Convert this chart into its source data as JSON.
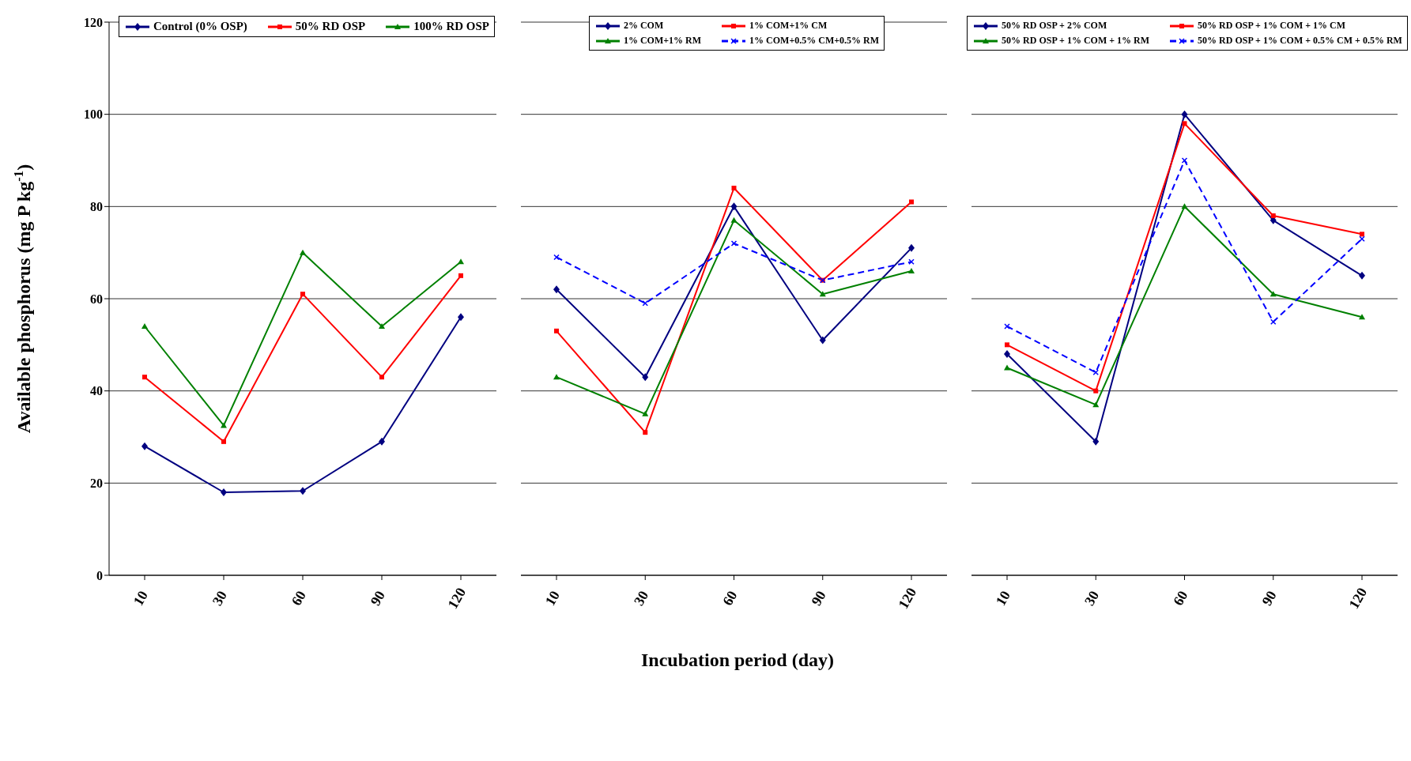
{
  "chart_data": [
    {
      "type": "line",
      "ylabel": "Available phosphorus (mg P kg$^{-1}$)",
      "categories": [
        "10",
        "30",
        "60",
        "90",
        "120"
      ],
      "ylim": [
        0,
        120
      ],
      "yticks": [
        0,
        20,
        40,
        60,
        80,
        100,
        120
      ],
      "grid": "y",
      "legend": "top right",
      "series": [
        {
          "name": "Control (0% OSP)",
          "color": "#000080",
          "marker": "diamond",
          "values": [
            28,
            18,
            18.3,
            29,
            56
          ]
        },
        {
          "name": "50% RD OSP",
          "color": "#ff0000",
          "marker": "square",
          "values": [
            43,
            29,
            61,
            43,
            65
          ]
        },
        {
          "name": "100% RD OSP",
          "color": "#008000",
          "marker": "triangle",
          "values": [
            54,
            32.5,
            70,
            54,
            68
          ]
        }
      ]
    },
    {
      "type": "line",
      "xlabel": "Incubation period (day)",
      "categories": [
        "10",
        "30",
        "60",
        "90",
        "120"
      ],
      "ylim": [
        0,
        120
      ],
      "yticks": [
        0,
        20,
        40,
        60,
        80,
        100,
        120
      ],
      "grid": "y",
      "legend": "top",
      "tick_labels": "x",
      "series": [
        {
          "name": "2% COM",
          "color": "#000080",
          "marker": "diamond",
          "values": [
            62,
            43,
            80,
            51,
            71
          ]
        },
        {
          "name": "1% COM+1% CM",
          "color": "#ff0000",
          "marker": "square",
          "values": [
            53,
            31,
            84,
            64,
            81
          ]
        },
        {
          "name": "1% COM+1% RM",
          "color": "#008000",
          "marker": "triangle",
          "values": [
            43,
            35,
            77,
            61,
            66
          ]
        },
        {
          "name": "1% COM+0.5% CM+0.5% RM",
          "color": "#0000ff",
          "marker": "cross",
          "line_style": "dashed",
          "values": [
            69,
            59,
            72,
            64,
            68
          ]
        }
      ]
    },
    {
      "type": "line",
      "categories": [
        "10",
        "30",
        "60",
        "90",
        "120"
      ],
      "ylim": [
        0,
        120
      ],
      "yticks": [
        0,
        20,
        40,
        60,
        80,
        100,
        120
      ],
      "grid": "y",
      "legend": "top",
      "tick_labels": "x",
      "series": [
        {
          "name": "50% RD OSP + 2% COM",
          "color": "#000080",
          "marker": "diamond",
          "values": [
            48,
            29,
            100,
            77,
            65
          ]
        },
        {
          "name": "50% RD OSP + 1% COM + 1% CM",
          "color": "#ff0000",
          "marker": "square",
          "values": [
            50,
            40,
            98,
            78,
            74
          ]
        },
        {
          "name": "50% RD OSP + 1% COM + 1% RM",
          "color": "#008000",
          "marker": "triangle",
          "values": [
            45,
            37,
            80,
            61,
            56
          ]
        },
        {
          "name": "50% RD OSP + 1% COM + 0.5% CM + 0.5% RM",
          "color": "#0000ff",
          "marker": "cross",
          "line_style": "dashed",
          "values": [
            54,
            44,
            90,
            55,
            73
          ]
        }
      ]
    }
  ]
}
